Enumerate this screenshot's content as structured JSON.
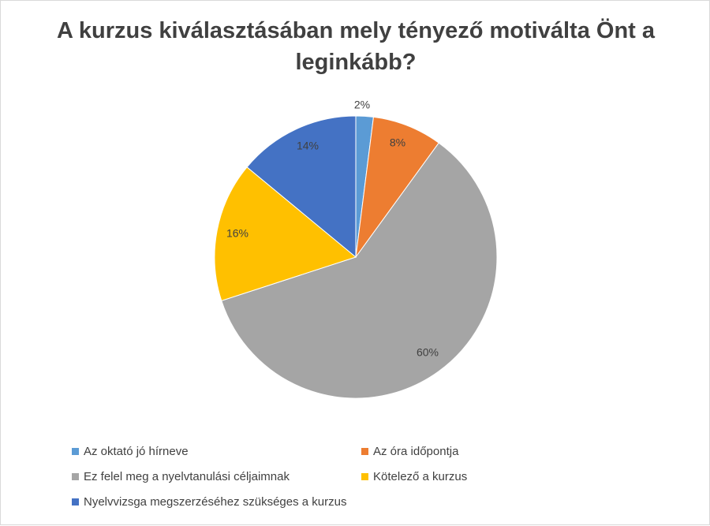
{
  "chart_data": {
    "type": "pie",
    "title": "A kurzus kiválasztásában mely tényező motiválta Önt a leginkább?",
    "categories": [
      "Az oktató jó hírneve",
      "Az óra időpontja",
      "Ez felel meg a nyelvtanulási céljaimnak",
      "Kötelező a kurzus",
      "Nyelvvizsga megszerzéséhez szükséges a kurzus"
    ],
    "values": [
      2,
      8,
      60,
      16,
      14
    ],
    "data_labels": [
      "2%",
      "8%",
      "60%",
      "16%",
      "14%"
    ],
    "colors": [
      "#5B9BD5",
      "#ED7D31",
      "#A5A5A5",
      "#FFC000",
      "#4472C4"
    ],
    "legend_position": "bottom"
  }
}
